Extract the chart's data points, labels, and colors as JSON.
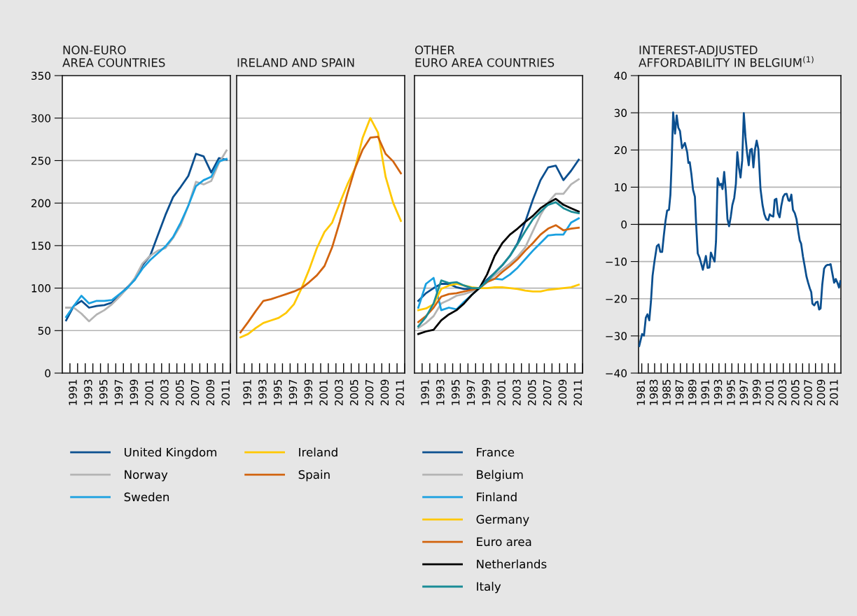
{
  "chart_data": [
    {
      "type": "line",
      "title": "NON-EURO\nAREA COUNTRIES",
      "categories": [
        null,
        "1991",
        null,
        "1993",
        null,
        "1995",
        null,
        "1997",
        null,
        "1999",
        null,
        "2001",
        null,
        "2003",
        null,
        "2005",
        null,
        "2007",
        null,
        "2009",
        null,
        "2011"
      ],
      "series": [
        {
          "name": "United Kingdom",
          "color": "#0b4f8f",
          "values": [
            62,
            79,
            85,
            77,
            79,
            80,
            83,
            92,
            101,
            110,
            127,
            138,
            162,
            186,
            207,
            219,
            232,
            258,
            255,
            236,
            253,
            251
          ]
        },
        {
          "name": "Norway",
          "color": "#b4b4b4",
          "values": [
            77,
            77,
            70,
            61,
            69,
            74,
            81,
            90,
            100,
            112,
            129,
            138,
            144,
            147,
            159,
            174,
            197,
            225,
            222,
            226,
            247,
            262
          ]
        },
        {
          "name": "Sweden",
          "color": "#1aa0e0",
          "values": [
            66,
            79,
            91,
            82,
            85,
            85,
            86,
            93,
            100,
            110,
            123,
            133,
            141,
            149,
            160,
            177,
            197,
            220,
            227,
            231,
            249,
            252
          ]
        }
      ],
      "ylim": [
        0,
        350
      ],
      "yticks": [
        0,
        50,
        100,
        150,
        200,
        250,
        300,
        350
      ],
      "grid": "y",
      "legend": "bottom"
    },
    {
      "type": "line",
      "title": "IRELAND AND SPAIN",
      "categories": [
        null,
        "1991",
        null,
        "1993",
        null,
        "1995",
        null,
        "1997",
        null,
        "1999",
        null,
        "2001",
        null,
        "2003",
        null,
        "2005",
        null,
        "2007",
        null,
        "2009",
        null,
        "2011"
      ],
      "series": [
        {
          "name": "Ireland",
          "color": "#ffc800",
          "values": [
            42,
            46,
            53,
            59,
            62,
            65,
            71,
            81,
            100,
            122,
            147,
            166,
            177,
            200,
            222,
            241,
            277,
            300,
            283,
            231,
            200,
            179
          ]
        },
        {
          "name": "Spain",
          "color": "#d2640f",
          "values": [
            48,
            60,
            73,
            85,
            87,
            90,
            93,
            96,
            100,
            107,
            115,
            126,
            148,
            178,
            211,
            241,
            263,
            277,
            278,
            258,
            249,
            235
          ]
        }
      ],
      "ylim": [
        0,
        350
      ],
      "yticks": [
        0,
        50,
        100,
        150,
        200,
        250,
        300,
        350
      ],
      "grid": "y",
      "legend": "bottom",
      "tick_labels": "x"
    },
    {
      "type": "line",
      "title": "OTHER\nEURO AREA COUNTRIES",
      "categories": [
        null,
        "1991",
        null,
        "1993",
        null,
        "1995",
        null,
        "1997",
        null,
        "1999",
        null,
        "2001",
        null,
        "2003",
        null,
        "2005",
        null,
        "2007",
        null,
        "2009",
        null,
        "2011"
      ],
      "series": [
        {
          "name": "France",
          "color": "#0b4f8f",
          "values": [
            85,
            94,
            100,
            105,
            105,
            101,
            99,
            99,
            100,
            110,
            118,
            127,
            138,
            153,
            178,
            204,
            227,
            242,
            244,
            227,
            238,
            251
          ]
        },
        {
          "name": "Belgium",
          "color": "#b4b4b4",
          "values": [
            53,
            59,
            67,
            82,
            86,
            91,
            93,
            96,
            100,
            108,
            115,
            122,
            129,
            137,
            148,
            167,
            186,
            201,
            211,
            211,
            222,
            228
          ]
        },
        {
          "name": "Finland",
          "color": "#1aa0e0",
          "values": [
            77,
            105,
            112,
            74,
            77,
            75,
            84,
            92,
            100,
            108,
            111,
            110,
            116,
            124,
            134,
            144,
            153,
            162,
            163,
            163,
            177,
            182
          ]
        },
        {
          "name": "Germany",
          "color": "#ffc800",
          "values": [
            74,
            76,
            81,
            99,
            103,
            105,
            103,
            101,
            100,
            100,
            101,
            101,
            100,
            99,
            97,
            96,
            96,
            98,
            99,
            100,
            101,
            104
          ]
        },
        {
          "name": "Euro area",
          "color": "#d2640f",
          "values": [
            60,
            67,
            77,
            90,
            93,
            94,
            96,
            98,
            100,
            107,
            111,
            119,
            126,
            134,
            144,
            153,
            163,
            170,
            174,
            168,
            170,
            171
          ]
        },
        {
          "name": "Netherlands",
          "color": "#000000",
          "values": [
            46,
            49,
            51,
            62,
            69,
            74,
            82,
            92,
            100,
            116,
            138,
            153,
            163,
            170,
            178,
            185,
            194,
            200,
            205,
            198,
            194,
            190
          ]
        },
        {
          "name": "Italy",
          "color": "#1a8c96",
          "values": [
            55,
            66,
            82,
            109,
            106,
            107,
            103,
            100,
            100,
            108,
            118,
            127,
            138,
            152,
            167,
            181,
            190,
            198,
            201,
            194,
            190,
            188
          ]
        }
      ],
      "ylim": [
        0,
        350
      ],
      "yticks": [
        0,
        50,
        100,
        150,
        200,
        250,
        300,
        350
      ],
      "grid": "y",
      "legend": "bottom",
      "tick_labels": "x"
    },
    {
      "type": "line",
      "title": "INTEREST-ADJUSTED\nAFFORDABILITY IN BELGIUM$^{(1)}$",
      "series": [
        {
          "color": "#0b4f8f",
          "x": [
            1980.6,
            1981.05,
            1981.34,
            1981.63,
            1981.88,
            1982.17,
            1982.43,
            1982.68,
            1982.97,
            1983.34,
            1983.63,
            1983.88,
            1984.17,
            1984.43,
            1984.68,
            1984.94,
            1985.23,
            1985.45,
            1985.63,
            1985.88,
            1986.17,
            1986.43,
            1986.68,
            1986.94,
            1987.26,
            1987.7,
            1988.06,
            1988.25,
            1988.46,
            1988.72,
            1988.97,
            1989.26,
            1989.45,
            1989.7,
            1989.99,
            1990.5,
            1990.97,
            1991.23,
            1991.52,
            1991.74,
            1991.99,
            1992.32,
            1992.54,
            1992.79,
            1993.08,
            1993.34,
            1993.55,
            1993.81,
            1994.06,
            1994.32,
            1994.57,
            1994.83,
            1995.08,
            1995.37,
            1995.63,
            1995.85,
            1996.1,
            1996.35,
            1996.61,
            1996.86,
            1997.12,
            1997.37,
            1997.63,
            1997.85,
            1998.1,
            1998.35,
            1998.61,
            1998.86,
            1999.12,
            1999.45,
            1999.77,
            2000.06,
            2000.35,
            2000.65,
            2000.9,
            2001.15,
            2001.45,
            2001.66,
            2001.92,
            2002.17,
            2002.43,
            2002.68,
            2002.97,
            2003.23,
            2003.52,
            2003.81,
            2003.99,
            2004.25,
            2004.5,
            2004.79,
            2005.05,
            2005.34,
            2005.55,
            2005.77,
            2006.06,
            2006.32,
            2006.61,
            2006.86,
            2007.12,
            2007.34,
            2007.52,
            2007.81,
            2008.06,
            2008.32,
            2008.57,
            2008.79,
            2009.05,
            2009.34,
            2009.59,
            2009.85,
            2010.1,
            2010.35,
            2010.61,
            2010.9,
            2011.15,
            2011.41,
            2011.66,
            2011.88
          ],
          "values": [
            -32.7,
            -29.5,
            -29.9,
            -25.1,
            -24.2,
            -25.8,
            -20.7,
            -13.8,
            -10.0,
            -5.9,
            -5.4,
            -7.4,
            -7.4,
            -3.0,
            0.8,
            3.7,
            3.9,
            8.0,
            15.9,
            30.1,
            24.4,
            29.3,
            26.0,
            25.1,
            20.5,
            21.9,
            19.4,
            16.5,
            16.7,
            13.4,
            9.3,
            7.4,
            0.1,
            -7.8,
            -9.0,
            -12.2,
            -8.5,
            -11.7,
            -11.6,
            -7.6,
            -8.7,
            -10.0,
            -4.6,
            12.4,
            10.5,
            10.9,
            9.5,
            14.1,
            9.0,
            1.4,
            -0.5,
            2.0,
            5.2,
            7.1,
            10.9,
            19.4,
            15.3,
            12.6,
            17.2,
            29.9,
            23.5,
            19.1,
            15.9,
            20.0,
            20.3,
            15.3,
            20.3,
            22.5,
            20.3,
            9.6,
            5.2,
            2.7,
            1.4,
            1.1,
            2.7,
            2.3,
            2.1,
            6.6,
            6.9,
            3.0,
            1.9,
            4.9,
            7.4,
            8.1,
            8.2,
            6.4,
            6.3,
            8.0,
            3.9,
            3.0,
            1.4,
            -2.1,
            -4.3,
            -5.2,
            -8.7,
            -11.2,
            -14.1,
            -15.7,
            -17.2,
            -18.2,
            -21.3,
            -21.8,
            -21.0,
            -20.8,
            -22.9,
            -22.6,
            -16.3,
            -11.9,
            -11.2,
            -10.9,
            -10.9,
            -10.7,
            -13.1,
            -15.7,
            -14.7,
            -15.7,
            -17.0,
            -15.3
          ]
        }
      ],
      "xlim": [
        1980.5,
        2011.95
      ],
      "ylim": [
        -40,
        40
      ],
      "yticks": [
        {
          "value": -40,
          "label": "−40"
        },
        {
          "value": -30,
          "label": "−30"
        },
        {
          "value": -20,
          "label": "−20"
        },
        {
          "value": -10,
          "label": "−10"
        },
        0,
        10,
        20,
        30,
        40
      ],
      "xticks": [
        1981,
        1983,
        1985,
        1987,
        1989,
        1991,
        1993,
        1995,
        1997,
        1999,
        2001,
        2003,
        2005,
        2007,
        2009,
        2011,
        {
          "value": 1982,
          "label": null
        },
        {
          "value": 1984,
          "label": null
        },
        {
          "value": 1986,
          "label": null
        },
        {
          "value": 1988,
          "label": null
        },
        {
          "value": 1990,
          "label": null
        },
        {
          "value": 1992,
          "label": null
        },
        {
          "value": 1994,
          "label": null
        },
        {
          "value": 1996,
          "label": null
        },
        {
          "value": 1998,
          "label": null
        },
        {
          "value": 2000,
          "label": null
        },
        {
          "value": 2002,
          "label": null
        },
        {
          "value": 2004,
          "label": null
        },
        {
          "value": 2006,
          "label": null
        },
        {
          "value": 2008,
          "label": null
        },
        {
          "value": 2010,
          "label": null
        }
      ],
      "grid": "y",
      "ref_lines": [
        {
          "axis": "y",
          "value": 0,
          "color": "#000000"
        }
      ]
    }
  ]
}
